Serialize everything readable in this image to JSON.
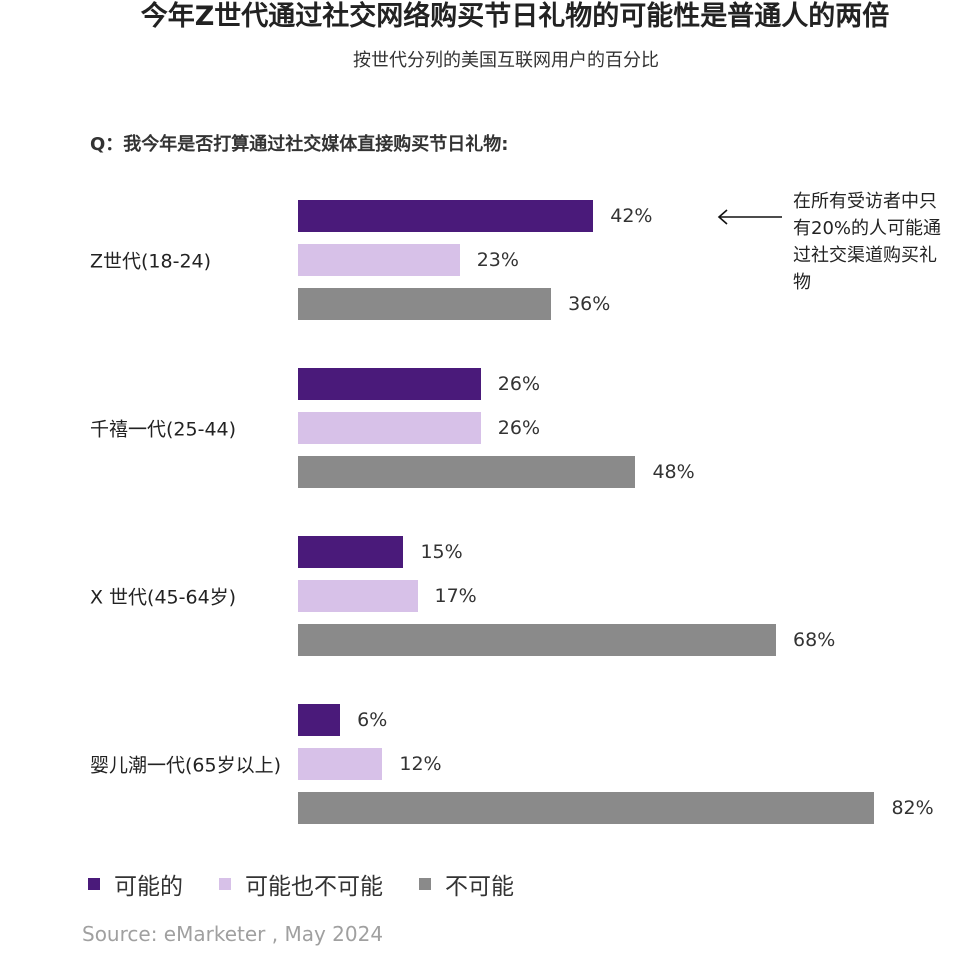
{
  "title": "今年Z世代通过社交网络购买节日礼物的可能性是普通人的两倍",
  "subtitle": "按世代分列的美国互联网用户的百分比",
  "question": "Q：我今年是否打算通过社交媒体直接购买节日礼物:",
  "annotation": "在所有受访者中只有20%的人可能通过社交渠道购买礼物",
  "source": "Source: eMarketer , May 2024",
  "chart_data": {
    "type": "bar",
    "orientation": "horizontal",
    "categories": [
      "Z世代(18-24)",
      "千禧一代(25-44)",
      "X 世代(45-64岁)",
      "婴儿潮一代(65岁以上)"
    ],
    "series": [
      {
        "name": "可能的",
        "color": "#4a1a7a",
        "values": [
          42,
          26,
          15,
          6
        ],
        "labels": [
          "42%",
          "26%",
          "15%",
          "6%"
        ]
      },
      {
        "name": "可能也不可能",
        "color": "#d7c1e8",
        "values": [
          23,
          26,
          17,
          12
        ],
        "labels": [
          "23%",
          "26%",
          "17%",
          "12%"
        ]
      },
      {
        "name": "不可能",
        "color": "#8a8a8a",
        "values": [
          36,
          48,
          68,
          82
        ],
        "labels": [
          "36%",
          "48%",
          "68%",
          "82%"
        ]
      }
    ],
    "unit": "%",
    "xlim": [
      0,
      82
    ],
    "grid": false,
    "legend_position": "bottom-left"
  }
}
